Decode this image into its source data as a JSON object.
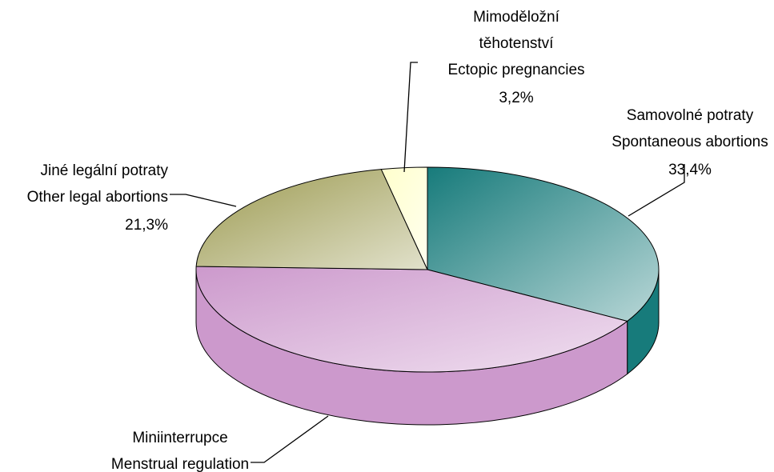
{
  "chart_data": {
    "type": "pie",
    "categories": [
      "Spontaneous abortions",
      "Menstrual regulation",
      "Other legal abortions",
      "Ectopic pregnancies"
    ],
    "categories_cz": [
      [
        "Samovolné potraty"
      ],
      [
        "Miniinterrupce"
      ],
      [
        "Jiné legální potraty"
      ],
      [
        "Mimoděložní",
        "těhotenství"
      ]
    ],
    "values": [
      33.4,
      42.1,
      21.3,
      3.2
    ],
    "value_labels": [
      "33,4%",
      null,
      "21,3%",
      "3,2%"
    ],
    "colors": [
      "#177b7b",
      "#cc99cc",
      "#9c9a50",
      "#ffffcc"
    ]
  }
}
